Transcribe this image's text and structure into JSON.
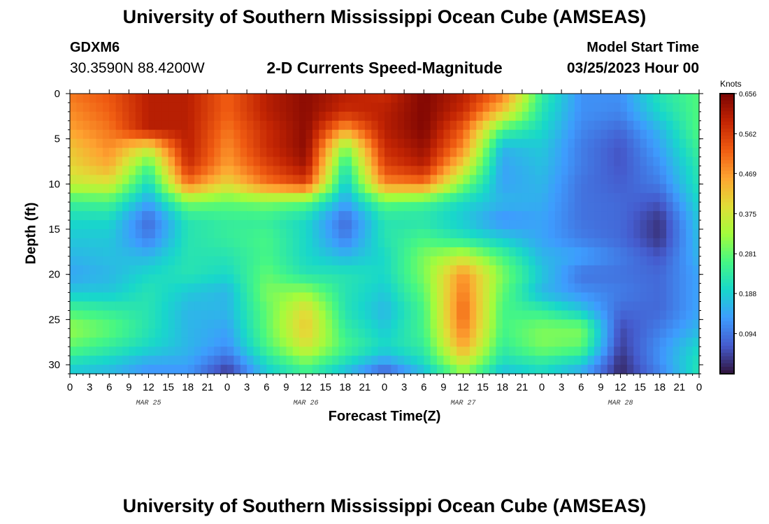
{
  "header": {
    "title": "University of Southern Mississippi Ocean Cube (AMSEAS)",
    "station": "GDXM6",
    "coords": "30.3590N  88.4200W",
    "subtitle": "2-D Currents Speed-Magnitude",
    "model_start_label": "Model Start Time",
    "model_start": "03/25/2023 Hour 00"
  },
  "footer": {
    "title": "University of Southern Mississippi Ocean Cube (AMSEAS)"
  },
  "chart_data": {
    "type": "heatmap",
    "title": "2-D Currents Speed-Magnitude",
    "xlabel": "Forecast Time(Z)",
    "ylabel": "Depth (ft)",
    "x_ticks": [
      "0",
      "3",
      "6",
      "9",
      "12",
      "15",
      "18",
      "21",
      "0",
      "3",
      "6",
      "9",
      "12",
      "15",
      "18",
      "21",
      "0",
      "3",
      "6",
      "9",
      "12",
      "15",
      "18",
      "21",
      "0",
      "3",
      "6",
      "9",
      "12",
      "15",
      "18",
      "21",
      "0"
    ],
    "x_range_hours": [
      0,
      96
    ],
    "day_labels": [
      "MAR 25",
      "MAR 26",
      "MAR 27",
      "MAR 28"
    ],
    "y_ticks": [
      "0",
      "5",
      "10",
      "15",
      "20",
      "25",
      "30"
    ],
    "y_range_ft": [
      0,
      31
    ],
    "colorbar": {
      "unit": "Knots",
      "min": 0.0,
      "max": 0.656,
      "tick_labels": [
        "0.656",
        "0.562",
        "0.469",
        "0.375",
        "0.281",
        "0.188",
        "0.094"
      ],
      "tick_values": [
        0.656,
        0.562,
        0.469,
        0.375,
        0.281,
        0.188,
        0.094
      ]
    },
    "depths_ft": [
      0,
      2,
      4,
      6,
      8,
      10,
      12,
      14,
      16,
      18,
      20,
      22,
      24,
      26,
      28,
      30,
      31
    ],
    "hours": [
      0,
      6,
      12,
      18,
      24,
      30,
      36,
      42,
      48,
      54,
      60,
      66,
      72,
      78,
      84,
      90,
      96
    ],
    "speed_knots": [
      [
        0.5,
        0.53,
        0.6,
        0.6,
        0.52,
        0.6,
        0.64,
        0.6,
        0.58,
        0.65,
        0.6,
        0.5,
        0.24,
        0.12,
        0.12,
        0.22,
        0.27
      ],
      [
        0.48,
        0.52,
        0.6,
        0.6,
        0.52,
        0.6,
        0.64,
        0.58,
        0.6,
        0.65,
        0.58,
        0.42,
        0.22,
        0.12,
        0.11,
        0.2,
        0.27
      ],
      [
        0.46,
        0.5,
        0.6,
        0.6,
        0.5,
        0.58,
        0.64,
        0.46,
        0.6,
        0.65,
        0.52,
        0.26,
        0.2,
        0.11,
        0.08,
        0.16,
        0.27
      ],
      [
        0.42,
        0.48,
        0.38,
        0.6,
        0.48,
        0.58,
        0.64,
        0.3,
        0.58,
        0.63,
        0.48,
        0.16,
        0.18,
        0.1,
        0.06,
        0.14,
        0.25
      ],
      [
        0.4,
        0.45,
        0.26,
        0.58,
        0.46,
        0.55,
        0.62,
        0.22,
        0.55,
        0.6,
        0.4,
        0.14,
        0.17,
        0.1,
        0.06,
        0.12,
        0.23
      ],
      [
        0.36,
        0.38,
        0.2,
        0.5,
        0.4,
        0.5,
        0.55,
        0.18,
        0.48,
        0.5,
        0.3,
        0.14,
        0.16,
        0.09,
        0.07,
        0.1,
        0.22
      ],
      [
        0.25,
        0.26,
        0.14,
        0.3,
        0.28,
        0.3,
        0.28,
        0.14,
        0.28,
        0.26,
        0.2,
        0.16,
        0.15,
        0.09,
        0.08,
        0.06,
        0.2
      ],
      [
        0.2,
        0.2,
        0.08,
        0.22,
        0.24,
        0.24,
        0.2,
        0.08,
        0.22,
        0.22,
        0.18,
        0.12,
        0.14,
        0.09,
        0.08,
        0.03,
        0.18
      ],
      [
        0.18,
        0.18,
        0.1,
        0.22,
        0.24,
        0.26,
        0.2,
        0.1,
        0.22,
        0.26,
        0.22,
        0.18,
        0.14,
        0.1,
        0.08,
        0.03,
        0.17
      ],
      [
        0.16,
        0.17,
        0.16,
        0.22,
        0.22,
        0.26,
        0.2,
        0.16,
        0.2,
        0.3,
        0.36,
        0.26,
        0.16,
        0.14,
        0.1,
        0.06,
        0.16
      ],
      [
        0.14,
        0.16,
        0.2,
        0.22,
        0.2,
        0.28,
        0.22,
        0.22,
        0.2,
        0.3,
        0.48,
        0.3,
        0.18,
        0.09,
        0.09,
        0.08,
        0.14
      ],
      [
        0.18,
        0.18,
        0.22,
        0.18,
        0.16,
        0.3,
        0.32,
        0.22,
        0.18,
        0.28,
        0.5,
        0.28,
        0.16,
        0.12,
        0.1,
        0.08,
        0.14
      ],
      [
        0.26,
        0.24,
        0.22,
        0.16,
        0.16,
        0.28,
        0.4,
        0.22,
        0.16,
        0.26,
        0.52,
        0.26,
        0.24,
        0.18,
        0.08,
        0.08,
        0.14
      ],
      [
        0.32,
        0.28,
        0.22,
        0.16,
        0.14,
        0.28,
        0.42,
        0.24,
        0.18,
        0.26,
        0.5,
        0.26,
        0.3,
        0.3,
        0.05,
        0.1,
        0.16
      ],
      [
        0.28,
        0.24,
        0.2,
        0.16,
        0.12,
        0.26,
        0.38,
        0.26,
        0.2,
        0.24,
        0.46,
        0.24,
        0.3,
        0.28,
        0.04,
        0.12,
        0.2
      ],
      [
        0.2,
        0.18,
        0.14,
        0.14,
        0.06,
        0.2,
        0.28,
        0.2,
        0.12,
        0.2,
        0.36,
        0.2,
        0.22,
        0.18,
        0.02,
        0.12,
        0.22
      ],
      [
        0.18,
        0.16,
        0.12,
        0.12,
        0.03,
        0.18,
        0.24,
        0.16,
        0.06,
        0.16,
        0.3,
        0.16,
        0.2,
        0.14,
        0.02,
        0.1,
        0.22
      ]
    ]
  }
}
